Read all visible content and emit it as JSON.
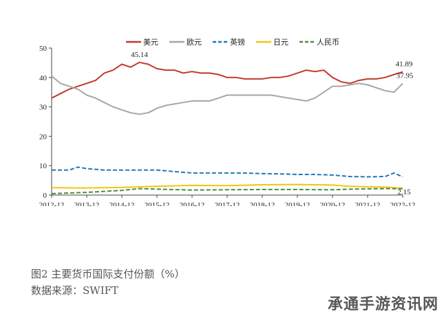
{
  "chart_data": {
    "type": "line",
    "title": "",
    "xlabel": "",
    "ylabel": "",
    "ylim": [
      0,
      50
    ],
    "yticks": [
      0,
      10,
      20,
      30,
      40,
      50
    ],
    "x_ticks": [
      "2012-12",
      "2013-12",
      "2014-12",
      "2015-12",
      "2016-12",
      "2017-12",
      "2018-12",
      "2019-12",
      "2020-12",
      "2021-12",
      "2022-12"
    ],
    "legend_position": "top",
    "grid": false,
    "series": [
      {
        "name": "美元",
        "color": "#c0392b",
        "dash": "solid",
        "points": [
          [
            0,
            33
          ],
          [
            0.25,
            34.5
          ],
          [
            0.5,
            36
          ],
          [
            0.75,
            37
          ],
          [
            1,
            38
          ],
          [
            1.25,
            39
          ],
          [
            1.5,
            41.5
          ],
          [
            1.75,
            42.5
          ],
          [
            2,
            44.5
          ],
          [
            2.25,
            43.5
          ],
          [
            2.5,
            45.14
          ],
          [
            2.75,
            44.5
          ],
          [
            3,
            43
          ],
          [
            3.25,
            42.5
          ],
          [
            3.5,
            42.5
          ],
          [
            3.75,
            41.5
          ],
          [
            4,
            42
          ],
          [
            4.25,
            41.5
          ],
          [
            4.5,
            41.5
          ],
          [
            4.75,
            41
          ],
          [
            5,
            40
          ],
          [
            5.25,
            40
          ],
          [
            5.5,
            39.5
          ],
          [
            5.75,
            39.5
          ],
          [
            6,
            39.5
          ],
          [
            6.25,
            40
          ],
          [
            6.5,
            40
          ],
          [
            6.75,
            40.5
          ],
          [
            7,
            41.5
          ],
          [
            7.25,
            42.5
          ],
          [
            7.5,
            42
          ],
          [
            7.75,
            42.5
          ],
          [
            8,
            40
          ],
          [
            8.25,
            38.5
          ],
          [
            8.5,
            38
          ],
          [
            8.75,
            39
          ],
          [
            9,
            39.5
          ],
          [
            9.25,
            39.5
          ],
          [
            9.5,
            40
          ],
          [
            9.75,
            41
          ],
          [
            10,
            41.89
          ]
        ]
      },
      {
        "name": "欧元",
        "color": "#a6a6a6",
        "dash": "solid",
        "points": [
          [
            0,
            40.5
          ],
          [
            0.25,
            38
          ],
          [
            0.5,
            37
          ],
          [
            0.75,
            36
          ],
          [
            1,
            34
          ],
          [
            1.25,
            33
          ],
          [
            1.5,
            31.5
          ],
          [
            1.75,
            30
          ],
          [
            2,
            29
          ],
          [
            2.25,
            28
          ],
          [
            2.5,
            27.5
          ],
          [
            2.75,
            28
          ],
          [
            3,
            29.5
          ],
          [
            3.25,
            30.5
          ],
          [
            3.5,
            31
          ],
          [
            3.75,
            31.5
          ],
          [
            4,
            32
          ],
          [
            4.25,
            32
          ],
          [
            4.5,
            32
          ],
          [
            4.75,
            33
          ],
          [
            5,
            34
          ],
          [
            5.25,
            34
          ],
          [
            5.5,
            34
          ],
          [
            5.75,
            34
          ],
          [
            6,
            34
          ],
          [
            6.25,
            34
          ],
          [
            6.5,
            33.5
          ],
          [
            6.75,
            33
          ],
          [
            7,
            32.5
          ],
          [
            7.25,
            32
          ],
          [
            7.5,
            33
          ],
          [
            7.75,
            35
          ],
          [
            8,
            37
          ],
          [
            8.25,
            37
          ],
          [
            8.5,
            37.5
          ],
          [
            8.75,
            38
          ],
          [
            9,
            37.5
          ],
          [
            9.25,
            36.5
          ],
          [
            9.5,
            35.5
          ],
          [
            9.75,
            35
          ],
          [
            10,
            37.95
          ]
        ]
      },
      {
        "name": "英镑",
        "color": "#1f77b4",
        "dash": "dashed",
        "points": [
          [
            0,
            8.5
          ],
          [
            0.5,
            8.5
          ],
          [
            0.75,
            9.5
          ],
          [
            1,
            9.0
          ],
          [
            1.5,
            8.5
          ],
          [
            2,
            8.5
          ],
          [
            2.5,
            8.5
          ],
          [
            3,
            8.5
          ],
          [
            3.5,
            8.0
          ],
          [
            4,
            7.5
          ],
          [
            4.5,
            7.5
          ],
          [
            5,
            7.5
          ],
          [
            5.5,
            7.5
          ],
          [
            6,
            7.3
          ],
          [
            6.5,
            7.2
          ],
          [
            7,
            7.0
          ],
          [
            7.5,
            7.0
          ],
          [
            8,
            6.8
          ],
          [
            8.5,
            6.3
          ],
          [
            9,
            6.2
          ],
          [
            9.5,
            6.3
          ],
          [
            9.75,
            7.5
          ],
          [
            10,
            6.2
          ]
        ]
      },
      {
        "name": "日元",
        "color": "#f1c40f",
        "dash": "solid",
        "points": [
          [
            0,
            2.5
          ],
          [
            1,
            2.4
          ],
          [
            2,
            2.6
          ],
          [
            3,
            3.0
          ],
          [
            4,
            3.3
          ],
          [
            5,
            3.2
          ],
          [
            6,
            3.5
          ],
          [
            7,
            3.6
          ],
          [
            8,
            3.4
          ],
          [
            8.5,
            3.0
          ],
          [
            9,
            2.8
          ],
          [
            9.5,
            2.7
          ],
          [
            10,
            2.3
          ]
        ]
      },
      {
        "name": "人民币",
        "color": "#4c8b3a",
        "dash": "dashed",
        "points": [
          [
            0,
            0.5
          ],
          [
            1,
            0.9
          ],
          [
            2,
            1.6
          ],
          [
            2.5,
            2.2
          ],
          [
            3,
            2.0
          ],
          [
            4,
            1.7
          ],
          [
            5,
            1.8
          ],
          [
            6,
            1.9
          ],
          [
            7,
            1.9
          ],
          [
            8,
            1.8
          ],
          [
            8.5,
            2.0
          ],
          [
            9,
            2.1
          ],
          [
            9.5,
            2.2
          ],
          [
            10,
            2.15
          ]
        ]
      }
    ],
    "annotations": [
      {
        "text": "45.14",
        "x": 2.5,
        "y": 45.14
      },
      {
        "text": "41.89",
        "x": 10,
        "y": 41.89
      },
      {
        "text": "37.95",
        "x": 10,
        "y": 37.95
      },
      {
        "text": "2.15",
        "x": 10,
        "y": 2.15
      }
    ]
  },
  "caption": {
    "title": "图2   主要货币国际支付份额（%）",
    "source": "数据来源：SWIFT"
  },
  "watermark": "承通手游资讯网"
}
